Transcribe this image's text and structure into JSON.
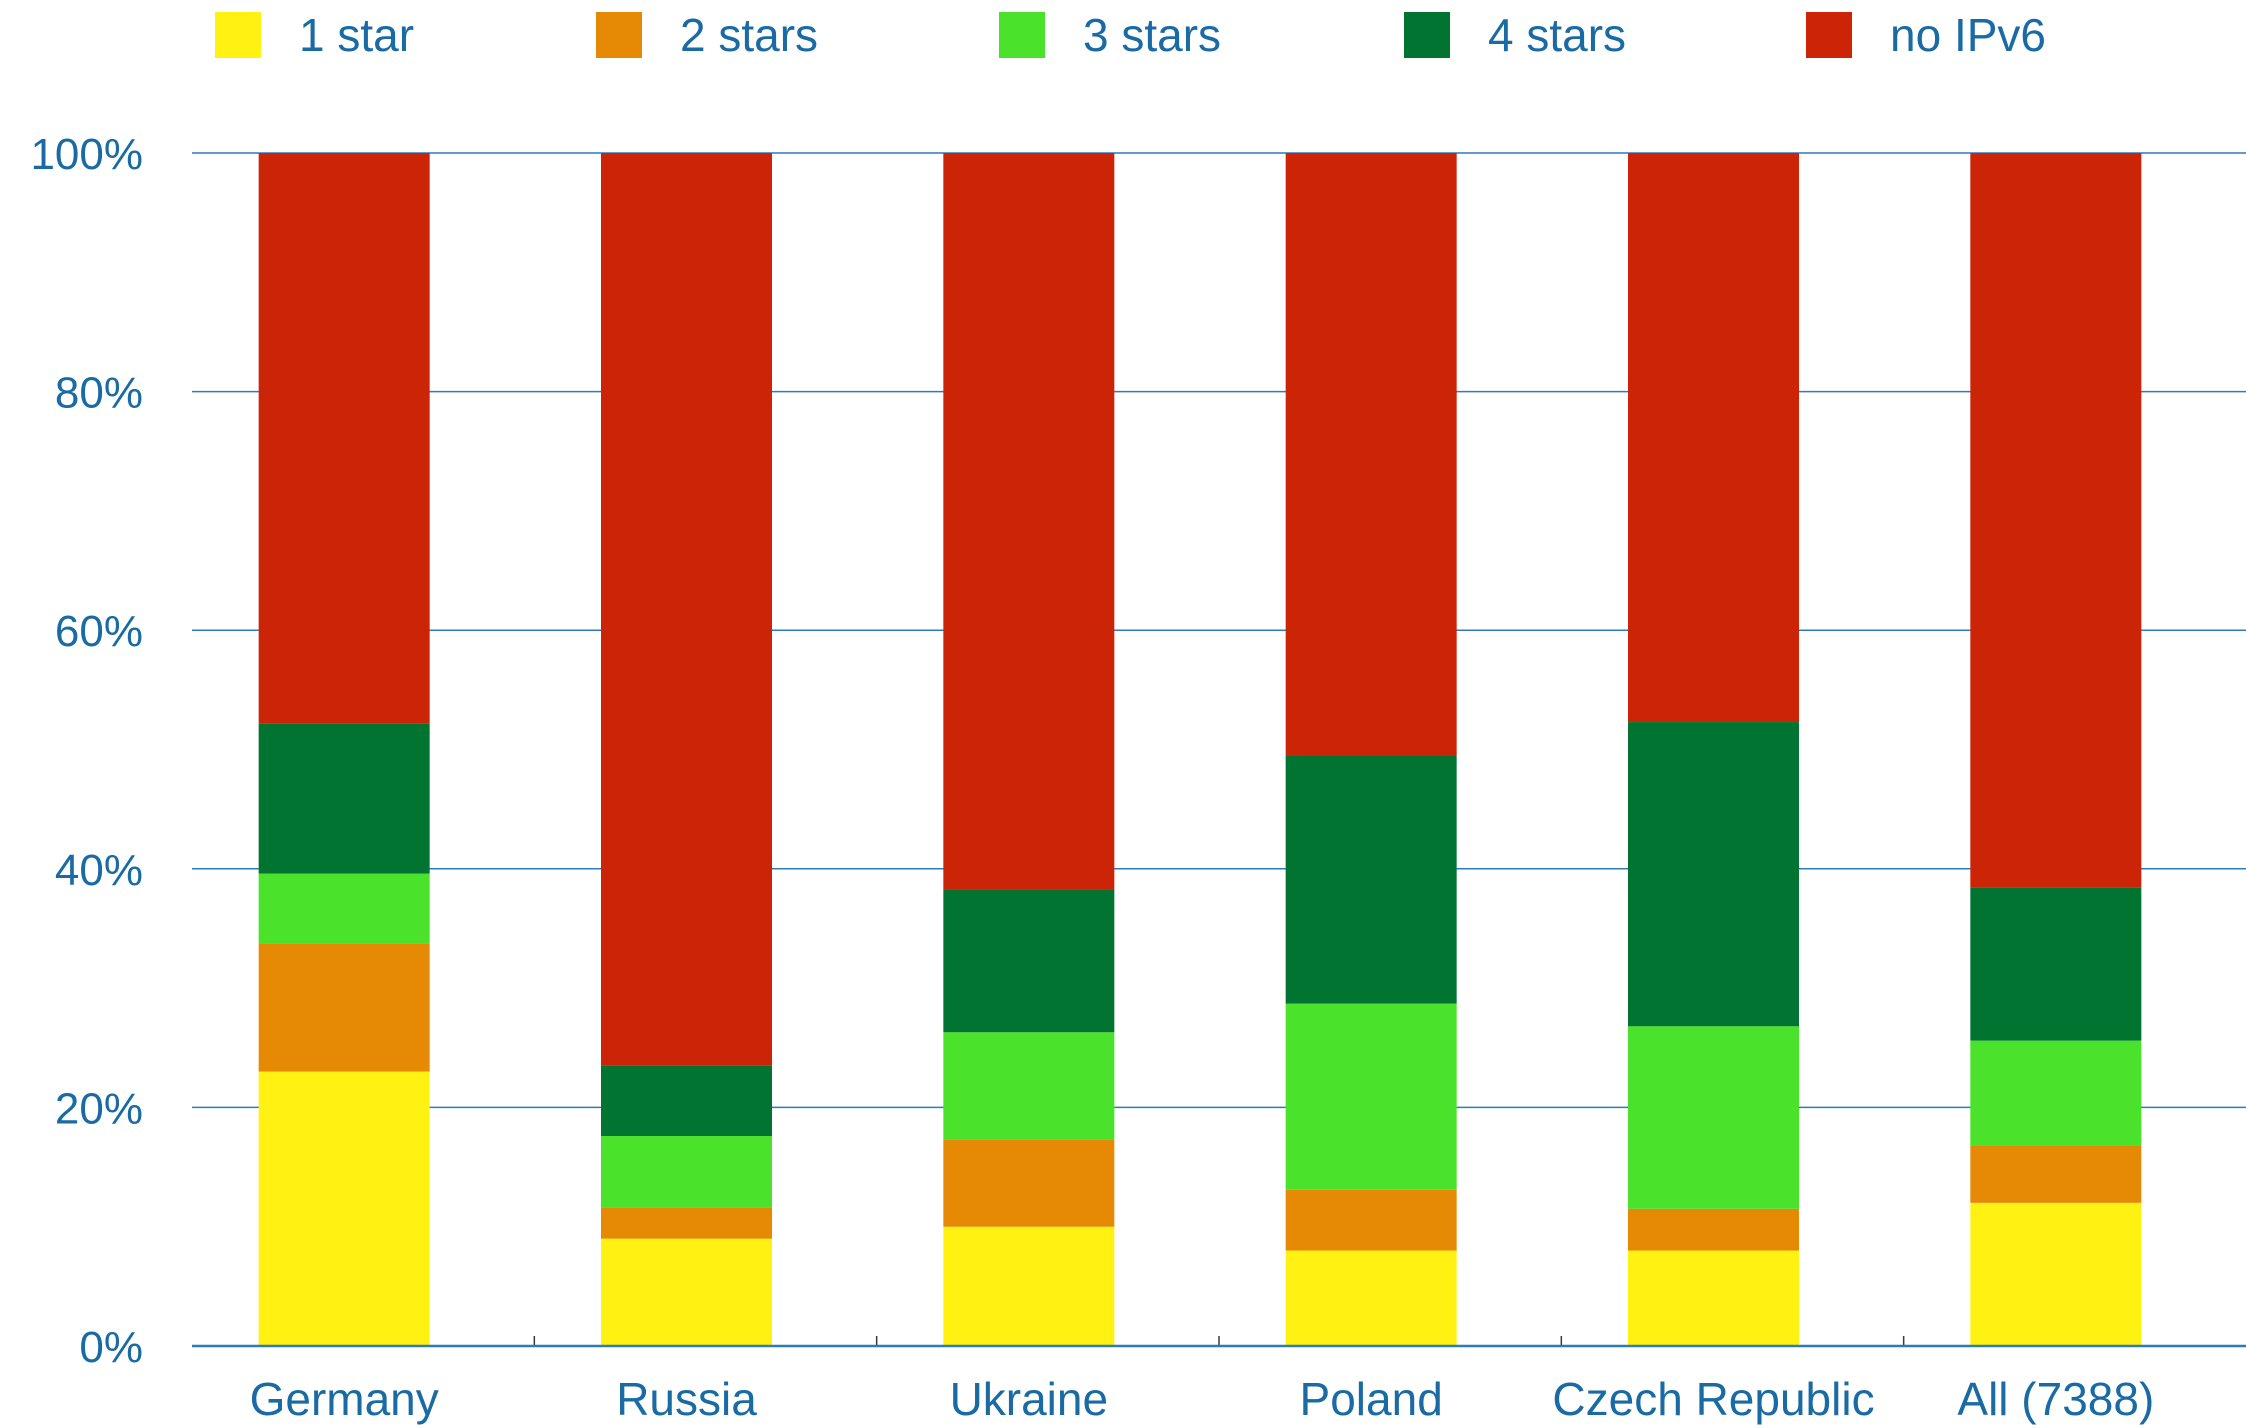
{
  "chart_data": {
    "type": "bar",
    "stacked": true,
    "title": "",
    "xlabel": "",
    "ylabel": "",
    "categories": [
      "Germany",
      "Russia",
      "Ukraine",
      "Poland",
      "Czech Republic",
      "All (7388)"
    ],
    "series": [
      {
        "name": "1 star",
        "color": "#fff212",
        "values": [
          23,
          9,
          10,
          8,
          8,
          12
        ]
      },
      {
        "name": "2 stars",
        "color": "#e68a05",
        "values": [
          10.7,
          2.6,
          7.3,
          5.1,
          3.5,
          4.8
        ]
      },
      {
        "name": "3 stars",
        "color": "#4be22b",
        "values": [
          5.9,
          6,
          9,
          15.6,
          15.3,
          8.8
        ]
      },
      {
        "name": "4 stars",
        "color": "#027432",
        "values": [
          12.6,
          5.9,
          12,
          20.8,
          25.5,
          12.8
        ]
      },
      {
        "name": "no IPv6",
        "color": "#cc2407",
        "values": [
          47.8,
          76.5,
          61.7,
          50.5,
          47.7,
          61.6
        ]
      }
    ],
    "ylim": [
      0,
      100
    ],
    "yticks": [
      "0%",
      "20%",
      "40%",
      "60%",
      "80%",
      "100%"
    ],
    "grid": true,
    "legend": "top",
    "colors": {
      "axis_text": "#1a6aa3",
      "gridline": "#2f7ab8"
    }
  }
}
